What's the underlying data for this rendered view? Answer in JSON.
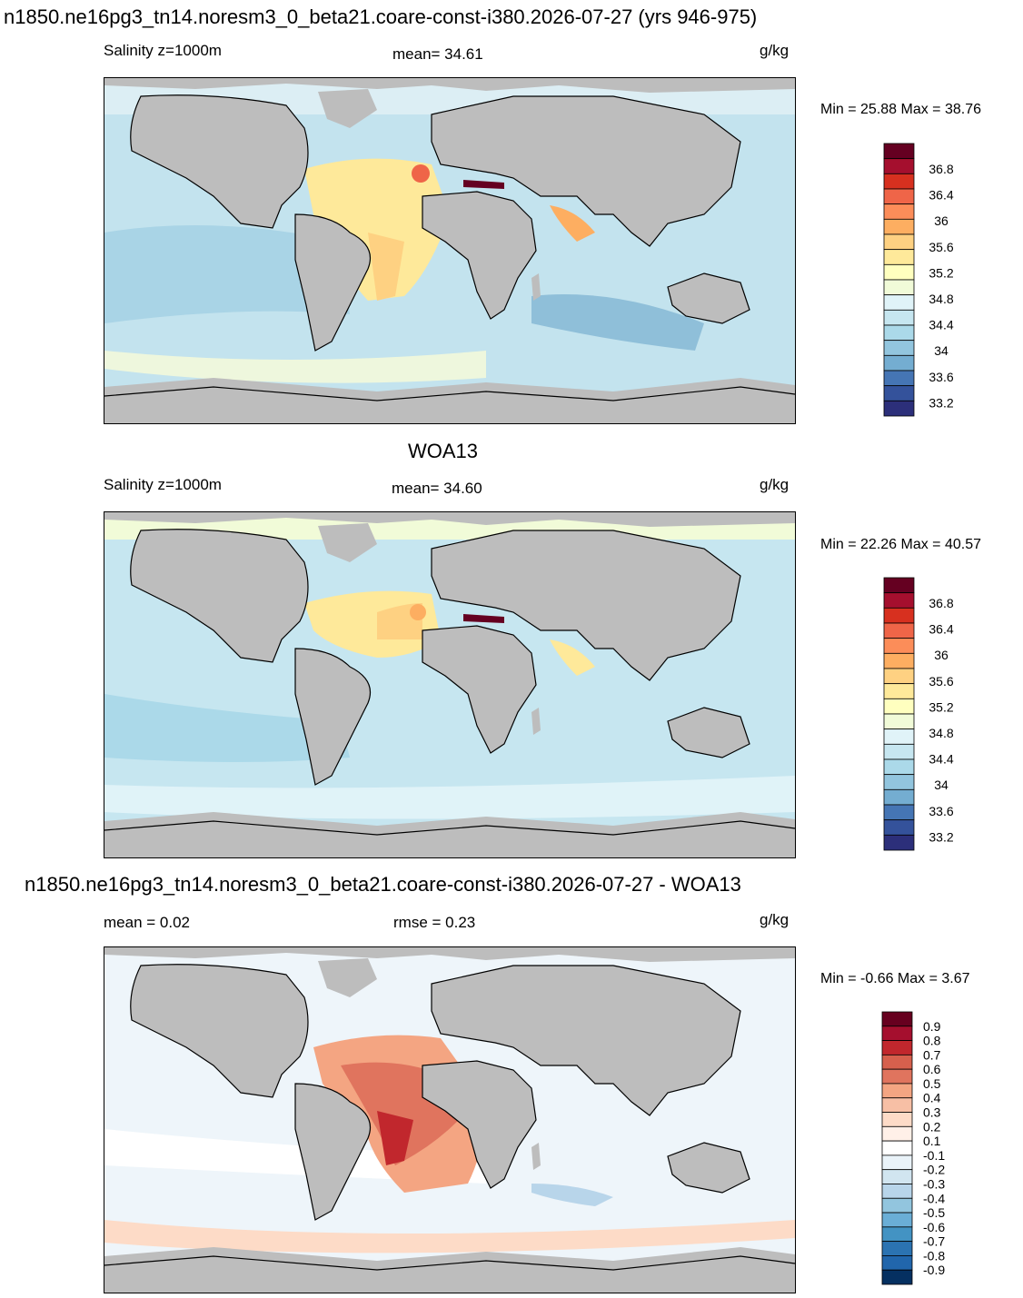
{
  "figure_title": "n1850.ne16pg3_tn14.noresm3_0_beta21.coare-const-i380.2026-07-27 (yrs 946-975)",
  "panels": [
    {
      "title": "",
      "left_label": "Salinity z=1000m",
      "center_label": "mean=  34.61",
      "units": "g/kg",
      "minmax": "Min =  25.88 Max =  38.76"
    },
    {
      "title": "WOA13",
      "left_label": "Salinity z=1000m",
      "center_label": "mean=  34.60",
      "units": "g/kg",
      "minmax": "Min =  22.26 Max =  40.57"
    },
    {
      "title": "n1850.ne16pg3_tn14.noresm3_0_beta21.coare-const-i380.2026-07-27 - WOA13",
      "left_label": "mean =   0.02",
      "center_label": "rmse =   0.23",
      "units": "g/kg",
      "minmax": "Min =  -0.66 Max =   3.67"
    }
  ],
  "colorbars": {
    "salinity": {
      "labels": [
        "36.8",
        "36.4",
        "36",
        "35.6",
        "35.2",
        "34.8",
        "34.4",
        "34",
        "33.6",
        "33.2"
      ],
      "colors": [
        "#650021",
        "#a50f2e",
        "#d7301f",
        "#ef6548",
        "#fc8d59",
        "#fdae61",
        "#fed182",
        "#fee99a",
        "#ffffbf",
        "#f1fbd8",
        "#e0f3f8",
        "#c6e6f0",
        "#abd9e9",
        "#92c5de",
        "#74add1",
        "#4575b4",
        "#34529b",
        "#2c2f7a"
      ]
    },
    "difference": {
      "labels": [
        "0.9",
        "0.8",
        "0.7",
        "0.6",
        "0.5",
        "0.4",
        "0.3",
        "0.2",
        "0.1",
        "-0.1",
        "-0.2",
        "-0.3",
        "-0.4",
        "-0.5",
        "-0.6",
        "-0.7",
        "-0.8",
        "-0.9"
      ],
      "colors": [
        "#67001f",
        "#a50f2e",
        "#c1272d",
        "#d6604d",
        "#e0745e",
        "#f4a582",
        "#f7bfa5",
        "#fddbc7",
        "#fff0e8",
        "#ffffff",
        "#eaf3f9",
        "#d1e5f0",
        "#b8d5ea",
        "#92c5de",
        "#6aaed6",
        "#4393c3",
        "#2b73b2",
        "#2166ac",
        "#053061"
      ]
    }
  },
  "map_colors": {
    "land": "#bdbdbd",
    "coast": "#000000",
    "salinity_ocean": "#c6e6f0",
    "diff_ocean": "#eef5fa"
  }
}
